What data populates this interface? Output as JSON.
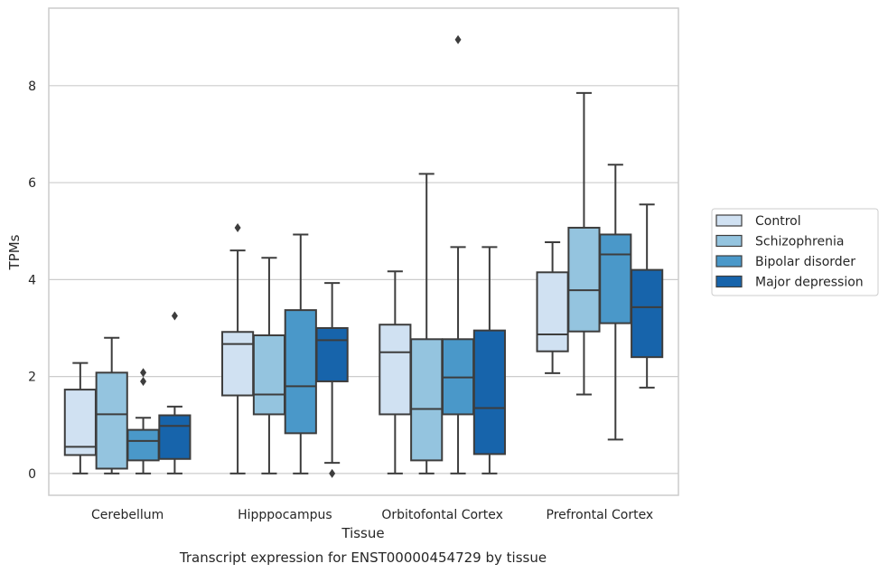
{
  "chart_data": {
    "type": "box",
    "title": "Transcript expression for ENST00000454729 by tissue",
    "xlabel": "Tissue",
    "ylabel": "TPMs",
    "categories": [
      "Cerebellum",
      "Hipppocampus",
      "Orbitofontal Cortex",
      "Prefrontal Cortex"
    ],
    "ylim": [
      -0.45,
      9.6
    ],
    "yticks": [
      0,
      2,
      4,
      6,
      8
    ],
    "grid": true,
    "legend_position": "right",
    "series": [
      {
        "name": "Control",
        "color": "#d0e1f2",
        "boxes": [
          {
            "whislo": 0.0,
            "q1": 0.38,
            "med": 0.55,
            "q3": 1.73,
            "whishi": 2.28,
            "fliers": []
          },
          {
            "whislo": 0.0,
            "q1": 1.61,
            "med": 2.67,
            "q3": 2.92,
            "whishi": 4.6,
            "fliers": [
              5.07
            ]
          },
          {
            "whislo": 0.0,
            "q1": 1.22,
            "med": 2.5,
            "q3": 3.07,
            "whishi": 4.17,
            "fliers": []
          },
          {
            "whislo": 2.07,
            "q1": 2.52,
            "med": 2.87,
            "q3": 4.15,
            "whishi": 4.77,
            "fliers": []
          }
        ]
      },
      {
        "name": "Schizophrenia",
        "color": "#94c4df",
        "boxes": [
          {
            "whislo": 0.0,
            "q1": 0.1,
            "med": 1.22,
            "q3": 2.08,
            "whishi": 2.8,
            "fliers": []
          },
          {
            "whislo": 0.0,
            "q1": 1.22,
            "med": 1.63,
            "q3": 2.85,
            "whishi": 4.45,
            "fliers": []
          },
          {
            "whislo": 0.0,
            "q1": 0.27,
            "med": 1.33,
            "q3": 2.77,
            "whishi": 6.18,
            "fliers": []
          },
          {
            "whislo": 1.63,
            "q1": 2.93,
            "med": 3.78,
            "q3": 5.07,
            "whishi": 7.85,
            "fliers": []
          }
        ]
      },
      {
        "name": "Bipolar disorder",
        "color": "#4a98c9",
        "boxes": [
          {
            "whislo": 0.0,
            "q1": 0.27,
            "med": 0.67,
            "q3": 0.9,
            "whishi": 1.15,
            "fliers": [
              1.9,
              2.08
            ]
          },
          {
            "whislo": 0.0,
            "q1": 0.83,
            "med": 1.8,
            "q3": 3.37,
            "whishi": 4.93,
            "fliers": []
          },
          {
            "whislo": 0.0,
            "q1": 1.22,
            "med": 1.98,
            "q3": 2.77,
            "whishi": 4.67,
            "fliers": [
              8.95
            ]
          },
          {
            "whislo": 0.7,
            "q1": 3.1,
            "med": 4.52,
            "q3": 4.93,
            "whishi": 6.37,
            "fliers": []
          }
        ]
      },
      {
        "name": "Major depression",
        "color": "#1764ab",
        "boxes": [
          {
            "whislo": 0.0,
            "q1": 0.3,
            "med": 0.98,
            "q3": 1.2,
            "whishi": 1.38,
            "fliers": [
              3.25
            ]
          },
          {
            "whislo": 0.22,
            "q1": 1.9,
            "med": 2.75,
            "q3": 3.0,
            "whishi": 3.93,
            "fliers": [
              0.0
            ]
          },
          {
            "whislo": 0.0,
            "q1": 0.4,
            "med": 1.35,
            "q3": 2.95,
            "whishi": 4.67,
            "fliers": []
          },
          {
            "whislo": 1.77,
            "q1": 2.4,
            "med": 3.43,
            "q3": 4.2,
            "whishi": 5.55,
            "fliers": []
          }
        ]
      }
    ]
  }
}
